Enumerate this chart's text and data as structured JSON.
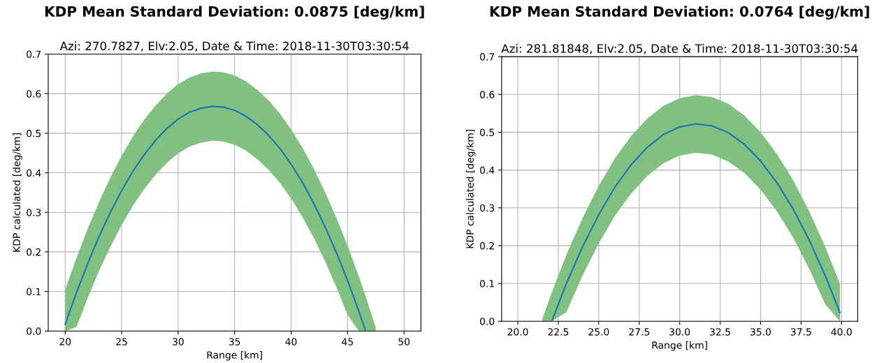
{
  "chart_data": [
    {
      "type": "line",
      "title": "KDP Mean Standard Deviation: 0.0875 [deg/km]",
      "subtitle": "Azi: 270.7827, Elv:2.05, Date & Time: 2018-11-30T03:30:54",
      "xlabel": "Range [km]",
      "ylabel": "KDP calculated [deg/km]",
      "xlim": [
        18.5,
        51.5
      ],
      "xticks": [
        20,
        25,
        30,
        35,
        40,
        45,
        50
      ],
      "ylim": [
        0,
        0.7
      ],
      "yticks": [
        {
          "value": 0,
          "label": "0.0"
        },
        0.1,
        0.2,
        0.3,
        0.4,
        0.5,
        0.6,
        0.7
      ],
      "grid": true,
      "series": [
        {
          "color": "#1f77b4",
          "x": [
            20,
            21,
            22,
            23,
            24,
            25,
            26,
            27,
            28,
            29,
            30,
            31,
            32,
            33,
            34,
            35,
            36,
            37,
            38,
            39,
            40,
            41,
            42,
            43,
            44,
            45,
            46,
            46.6,
            47,
            47.5
          ],
          "values": [
            0.017,
            0.097,
            0.171,
            0.239,
            0.3,
            0.355,
            0.404,
            0.446,
            0.482,
            0.512,
            0.536,
            0.553,
            0.563,
            0.568,
            0.566,
            0.558,
            0.543,
            0.522,
            0.495,
            0.462,
            0.422,
            0.376,
            0.323,
            0.264,
            0.199,
            0.128,
            0.05,
            0.0,
            null,
            null
          ],
          "upper": [
            0.105,
            0.185,
            0.259,
            0.327,
            0.388,
            0.443,
            0.492,
            0.534,
            0.57,
            0.6,
            0.624,
            0.641,
            0.651,
            0.656,
            0.654,
            0.646,
            0.631,
            0.61,
            0.583,
            0.55,
            0.51,
            0.464,
            0.411,
            0.352,
            0.287,
            0.216,
            0.138,
            0.088,
            0.053,
            0.008
          ],
          "lower": [
            0.0,
            0.01,
            0.084,
            0.152,
            0.213,
            0.268,
            0.317,
            0.359,
            0.395,
            0.425,
            0.449,
            0.466,
            0.476,
            0.481,
            0.479,
            0.471,
            0.456,
            0.435,
            0.408,
            0.375,
            0.335,
            0.289,
            0.236,
            0.177,
            0.112,
            0.041,
            0.0,
            0.0,
            0.0,
            0.0
          ]
        }
      ]
    },
    {
      "type": "line",
      "title": "KDP Mean Standard Deviation: 0.0764 [deg/km]",
      "subtitle": "Azi: 281.81848, Elv:2.05, Date & Time: 2018-11-30T03:30:54",
      "xlabel": "Range [km]",
      "ylabel": "KDP calculated [deg/km]",
      "xlim": [
        19,
        41
      ],
      "xticks": [
        {
          "value": 20,
          "label": "20.0"
        },
        22.5,
        {
          "value": 25,
          "label": "25.0"
        },
        27.5,
        {
          "value": 30,
          "label": "30.0"
        },
        32.5,
        {
          "value": 35,
          "label": "35.0"
        },
        37.5,
        {
          "value": 40,
          "label": "40.0"
        }
      ],
      "ylim": [
        0,
        0.7
      ],
      "yticks": [
        {
          "value": 0,
          "label": "0.0"
        },
        0.1,
        0.2,
        0.3,
        0.4,
        0.5,
        0.6,
        0.7
      ],
      "grid": true,
      "series": [
        {
          "color": "#1f77b4",
          "x": [
            21.5,
            22,
            22.1,
            23,
            24,
            25,
            26,
            27,
            28,
            29,
            30,
            31,
            32,
            33,
            34,
            35,
            36,
            37,
            38,
            39,
            39.9
          ],
          "values": [
            null,
            null,
            0.0,
            0.1,
            0.197,
            0.282,
            0.355,
            0.414,
            0.46,
            0.494,
            0.514,
            0.522,
            0.517,
            0.499,
            0.468,
            0.424,
            0.367,
            0.298,
            0.215,
            0.12,
            0.023
          ],
          "upper": [
            0.004,
            0.065,
            0.076,
            0.176,
            0.273,
            0.358,
            0.431,
            0.49,
            0.536,
            0.57,
            0.59,
            0.598,
            0.593,
            0.575,
            0.544,
            0.5,
            0.443,
            0.374,
            0.291,
            0.196,
            0.099
          ],
          "lower": [
            0.0,
            0.0,
            0.0,
            0.024,
            0.121,
            0.206,
            0.279,
            0.338,
            0.384,
            0.418,
            0.438,
            0.446,
            0.441,
            0.423,
            0.392,
            0.348,
            0.291,
            0.222,
            0.139,
            0.044,
            0.0
          ]
        }
      ]
    }
  ]
}
